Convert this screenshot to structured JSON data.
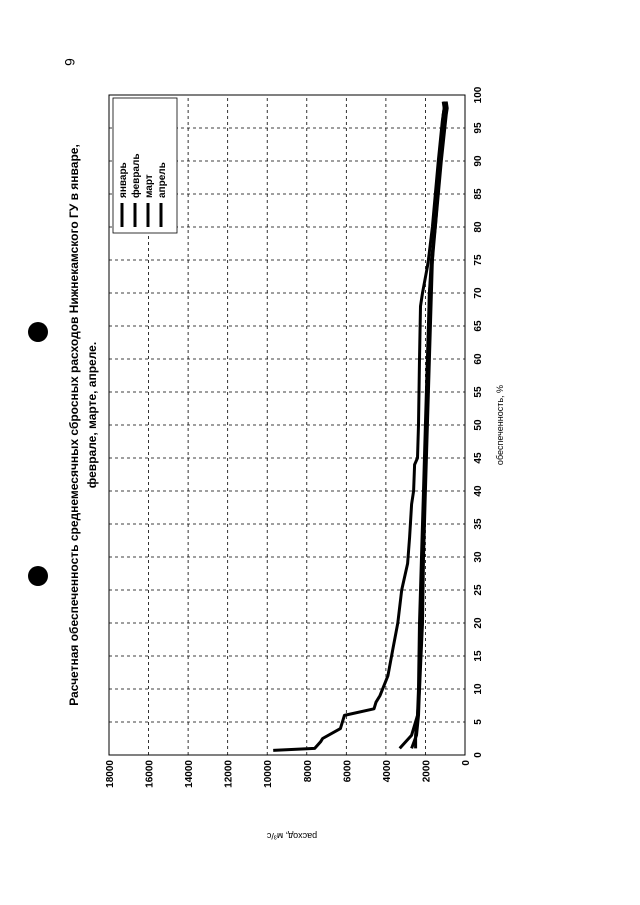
{
  "page": {
    "page_number": "6"
  },
  "chart_data": {
    "type": "line",
    "title_line1": "Расчетная обеспеченность среднемесячных сбросных расходов Нижнекамского ГУ в январе,",
    "title_line2": "феврале, марте, апреле.",
    "xlabel": "обеспеченность, %",
    "ylabel": "расход, м³/с",
    "xlim": [
      0,
      100
    ],
    "ylim": [
      0,
      18000
    ],
    "x_ticks": [
      "0",
      "5",
      "10",
      "15",
      "20",
      "25",
      "30",
      "35",
      "40",
      "45",
      "50",
      "55",
      "60",
      "65",
      "70",
      "75",
      "80",
      "85",
      "90",
      "95",
      "100"
    ],
    "y_ticks": [
      "0",
      "2000",
      "4000",
      "6000",
      "8000",
      "10000",
      "12000",
      "14000",
      "16000",
      "18000"
    ],
    "grid": true,
    "legend_position": "top-right",
    "series": [
      {
        "name": "январь",
        "x": [
          1,
          3,
          6,
          10,
          20,
          30,
          40,
          50,
          60,
          70,
          75,
          80,
          90,
          97,
          98,
          99
        ],
        "y": [
          2700,
          2450,
          2350,
          2300,
          2250,
          2150,
          2050,
          1950,
          1850,
          1800,
          1700,
          1500,
          1250,
          1050,
          950,
          1000
        ]
      },
      {
        "name": "февраль",
        "x": [
          1,
          3,
          6,
          10,
          20,
          30,
          40,
          50,
          60,
          70,
          75,
          80,
          90,
          97,
          98,
          99
        ],
        "y": [
          3300,
          2700,
          2400,
          2350,
          2300,
          2200,
          2100,
          2000,
          1900,
          1800,
          1650,
          1500,
          1200,
          950,
          900,
          950
        ]
      },
      {
        "name": "март",
        "x": [
          1,
          3,
          6,
          10,
          20,
          30,
          40,
          50,
          60,
          70,
          75,
          80,
          90,
          97,
          98,
          99
        ],
        "y": [
          2500,
          2500,
          2400,
          2300,
          2150,
          2100,
          2000,
          1900,
          1800,
          1700,
          1650,
          1550,
          1300,
          1100,
          1050,
          1050
        ]
      },
      {
        "name": "апрель",
        "x": [
          0.7,
          1,
          2,
          2.5,
          4,
          5,
          6,
          7,
          8,
          9,
          12,
          16,
          20,
          25,
          29,
          33,
          38,
          40,
          44,
          45,
          50,
          60,
          68,
          70,
          74,
          75,
          80,
          90,
          96,
          97,
          98,
          99
        ],
        "y": [
          9700,
          7600,
          7300,
          7200,
          6300,
          6200,
          6100,
          4600,
          4500,
          4300,
          3900,
          3650,
          3400,
          3200,
          2900,
          2800,
          2700,
          2600,
          2550,
          2400,
          2350,
          2300,
          2250,
          2150,
          1900,
          1850,
          1650,
          1350,
          1150,
          1100,
          1050,
          1100
        ]
      }
    ]
  }
}
